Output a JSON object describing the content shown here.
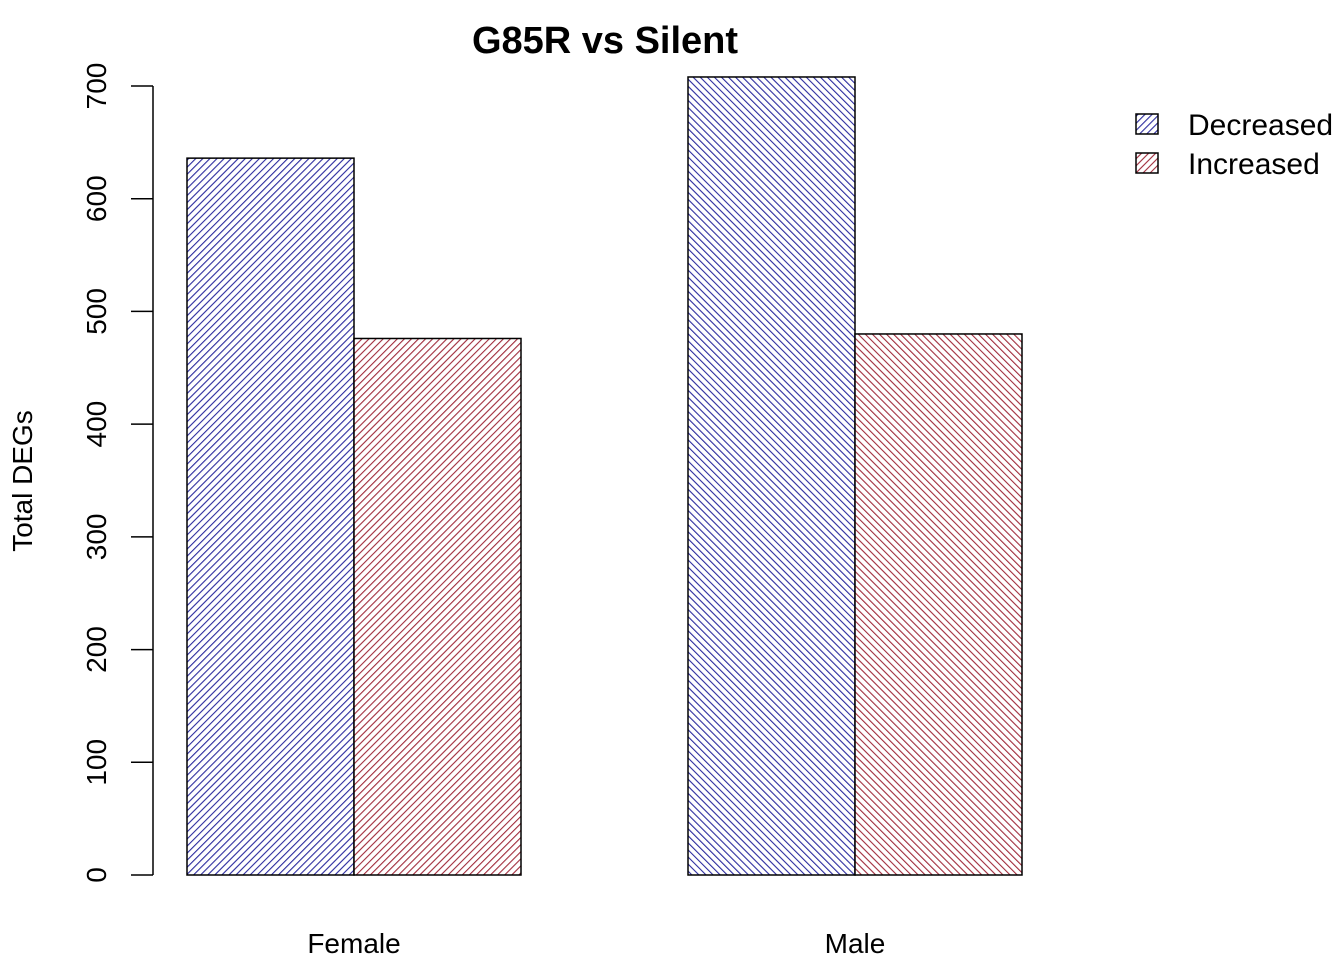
{
  "chart_data": {
    "type": "bar",
    "title": "G85R vs Silent",
    "xlabel": "",
    "ylabel": "Total DEGs",
    "categories": [
      "Female",
      "Male"
    ],
    "series": [
      {
        "name": "Decreased",
        "values": [
          636,
          708
        ],
        "color": "#2b2b9e",
        "hatch": "diagonal-up"
      },
      {
        "name": "Increased",
        "values": [
          476,
          480
        ],
        "color": "#a02c3c",
        "hatch": "diagonal-up"
      }
    ],
    "male_hatch_direction": "diagonal-down",
    "yticks": [
      "0",
      "100",
      "200",
      "300",
      "400",
      "500",
      "600",
      "700"
    ],
    "ylim": [
      0,
      700
    ],
    "grid": false,
    "legend_position": "top-right"
  }
}
